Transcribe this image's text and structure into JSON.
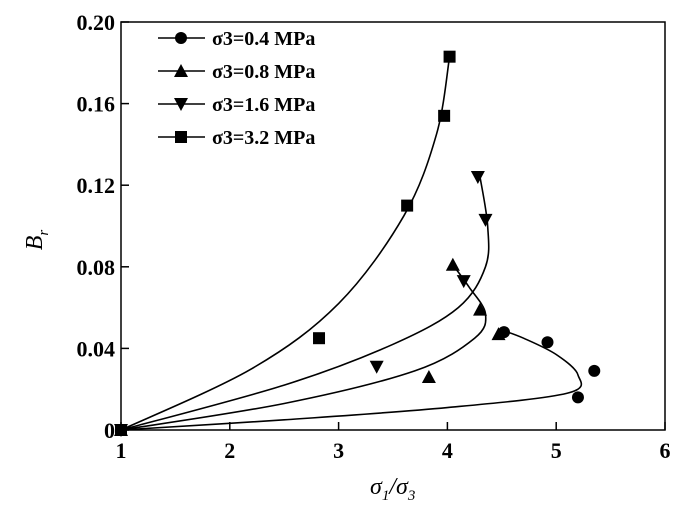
{
  "chart_data": {
    "type": "scatter",
    "title": "",
    "xlabel": "σ1/σ3",
    "ylabel": "Br",
    "xlim": [
      1,
      6
    ],
    "ylim": [
      0,
      0.2
    ],
    "x_ticks": [
      "1",
      "2",
      "3",
      "4",
      "5",
      "6"
    ],
    "y_ticks": [
      "0",
      "0.04",
      "0.08",
      "0.12",
      "0.16",
      "0.20"
    ],
    "legend_position": "top-left",
    "series": [
      {
        "name": "σ3=0.4 MPa",
        "marker": "circle",
        "points": [
          [
            1.0,
            0.0
          ],
          [
            4.52,
            0.048
          ],
          [
            4.92,
            0.043
          ],
          [
            5.35,
            0.029
          ],
          [
            5.2,
            0.016
          ]
        ],
        "curve": [
          [
            1.0,
            0.0
          ],
          [
            2.5,
            0.005
          ],
          [
            4.0,
            0.011
          ],
          [
            5.1,
            0.018
          ],
          [
            5.2,
            0.027
          ],
          [
            5.0,
            0.037
          ],
          [
            4.7,
            0.045
          ],
          [
            4.5,
            0.049
          ]
        ]
      },
      {
        "name": "σ3=0.8 MPa",
        "marker": "triangle-up",
        "points": [
          [
            1.0,
            0.0
          ],
          [
            3.83,
            0.026
          ],
          [
            4.47,
            0.047
          ],
          [
            4.3,
            0.059
          ],
          [
            4.05,
            0.081
          ]
        ],
        "curve": [
          [
            1.0,
            0.0
          ],
          [
            2.5,
            0.013
          ],
          [
            3.7,
            0.029
          ],
          [
            4.25,
            0.045
          ],
          [
            4.35,
            0.057
          ],
          [
            4.2,
            0.07
          ],
          [
            4.05,
            0.081
          ]
        ]
      },
      {
        "name": "σ3=1.6 MPa",
        "marker": "triangle-down",
        "points": [
          [
            1.0,
            0.0
          ],
          [
            3.35,
            0.031
          ],
          [
            4.15,
            0.073
          ],
          [
            4.35,
            0.103
          ],
          [
            4.28,
            0.124
          ]
        ],
        "curve": [
          [
            1.0,
            0.0
          ],
          [
            2.5,
            0.022
          ],
          [
            3.5,
            0.042
          ],
          [
            4.1,
            0.06
          ],
          [
            4.35,
            0.08
          ],
          [
            4.37,
            0.1
          ],
          [
            4.3,
            0.124
          ]
        ]
      },
      {
        "name": "σ3=3.2 MPa",
        "marker": "square",
        "points": [
          [
            1.0,
            0.0
          ],
          [
            2.82,
            0.045
          ],
          [
            3.63,
            0.11
          ],
          [
            3.97,
            0.154
          ],
          [
            4.02,
            0.183
          ]
        ],
        "curve": [
          [
            1.0,
            0.0
          ],
          [
            2.2,
            0.03
          ],
          [
            3.0,
            0.062
          ],
          [
            3.6,
            0.105
          ],
          [
            3.9,
            0.145
          ],
          [
            4.02,
            0.183
          ]
        ]
      }
    ]
  }
}
